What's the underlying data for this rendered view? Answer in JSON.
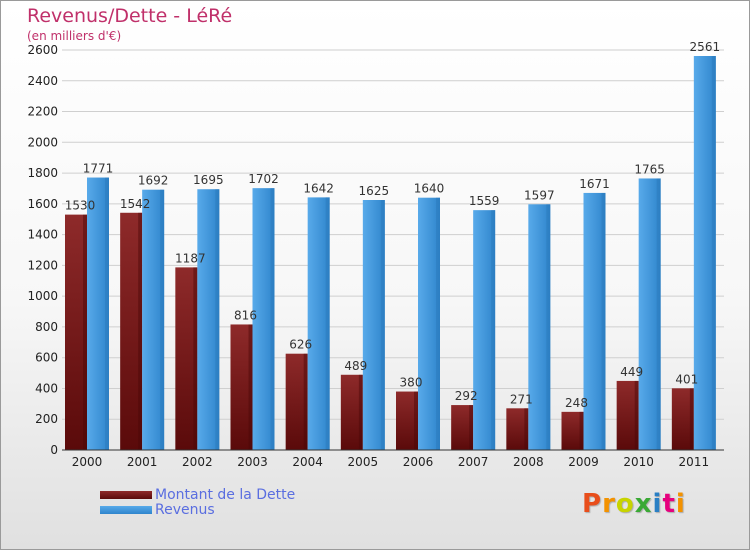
{
  "title": "Revenus/Dette - LéRé",
  "subtitle": "(en milliers d'€)",
  "colors": {
    "title": "#c0306a",
    "dette": "#7a1b1b",
    "revenus": "#3b93d8",
    "legend_text": "#5a6ee0"
  },
  "chart_data": {
    "type": "bar",
    "categories": [
      "2000",
      "2001",
      "2002",
      "2003",
      "2004",
      "2005",
      "2006",
      "2007",
      "2008",
      "2009",
      "2010",
      "2011"
    ],
    "series": [
      {
        "name": "Montant de la Dette",
        "values": [
          1530,
          1542,
          1187,
          816,
          626,
          489,
          380,
          292,
          271,
          248,
          449,
          401
        ]
      },
      {
        "name": "Revenus",
        "values": [
          1771,
          1692,
          1695,
          1702,
          1642,
          1625,
          1640,
          1559,
          1597,
          1671,
          1765,
          2561
        ]
      }
    ],
    "ylim": [
      0,
      2600
    ],
    "yticks": [
      0,
      200,
      400,
      600,
      800,
      1000,
      1200,
      1400,
      1600,
      1800,
      2000,
      2200,
      2400,
      2600
    ],
    "grid": true,
    "legend": "bottom-left"
  },
  "legend": {
    "dette_label": "Montant de la Dette",
    "revenus_label": "Revenus"
  },
  "logo": {
    "text": "Proxiti",
    "letter_colors": [
      "#e84e1b",
      "#f39200",
      "#c8d400",
      "#3aa935",
      "#2a7fc4",
      "#e6007e",
      "#f39200"
    ]
  }
}
